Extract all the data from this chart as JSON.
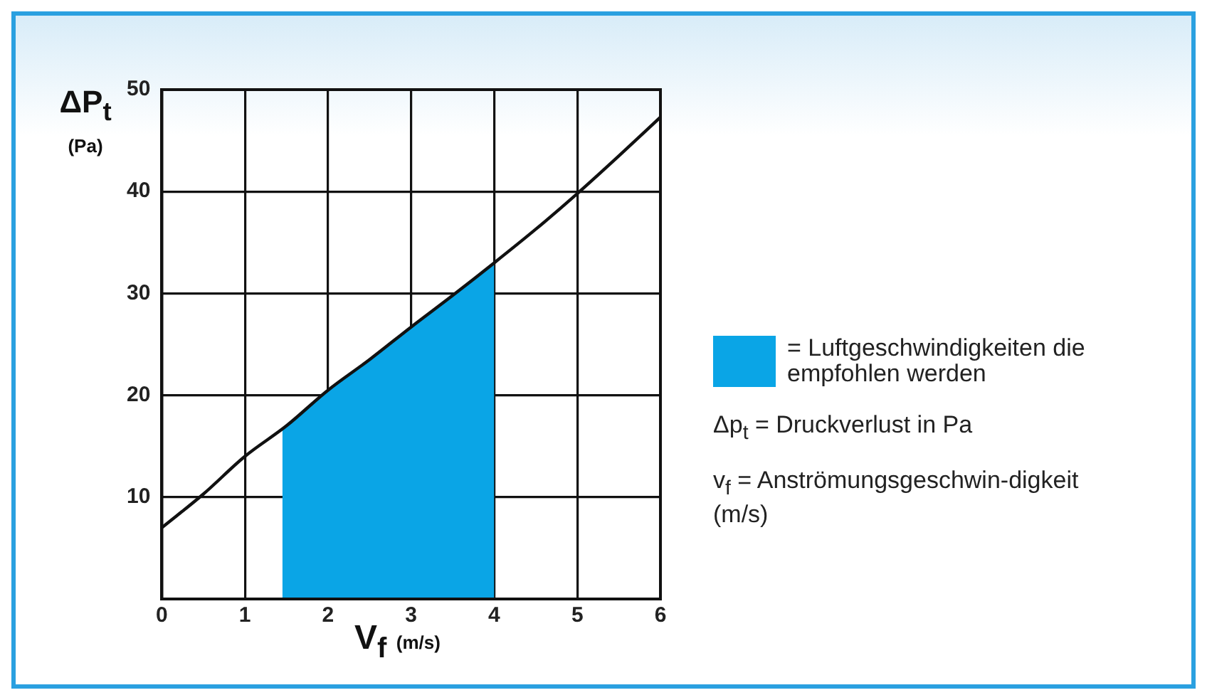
{
  "chart_data": {
    "type": "line",
    "xlabel": "V$_{f}$ (m/s)",
    "ylabel": "ΔP$_{t}$ (Pa)",
    "xlim": [
      0,
      6
    ],
    "xticks": [
      0,
      1,
      2,
      3,
      4,
      5,
      6
    ],
    "ylim": [
      0,
      50
    ],
    "yticks": [
      {
        "value": 0,
        "label": null
      },
      10,
      20,
      30,
      40,
      50
    ],
    "grid": true,
    "legend": "right",
    "series": [
      {
        "type": "area",
        "name": "= Luftgeschwindigkeiten die empfohlen werden",
        "color": "#0aa5e6",
        "x": [
          1.45,
          2,
          2.5,
          3,
          3.5,
          4
        ],
        "values": [
          16.8,
          20.5,
          23.5,
          26.7,
          29.8,
          33
        ]
      },
      {
        "type": "line",
        "color": "#111111",
        "x": [
          0,
          0.5,
          1,
          1.5,
          2,
          2.5,
          3,
          3.5,
          4,
          4.5,
          5,
          5.5,
          6
        ],
        "values": [
          7,
          10.3,
          14,
          17,
          20.5,
          23.5,
          26.7,
          29.8,
          33,
          36.3,
          39.8,
          43.5,
          47.3
        ]
      }
    ],
    "annotations": [
      "Δp$_{t}$ = Druckverlust in Pa",
      "v$_{f}$ = Anströmungsgeschwin-digkeit (m/s)"
    ]
  }
}
